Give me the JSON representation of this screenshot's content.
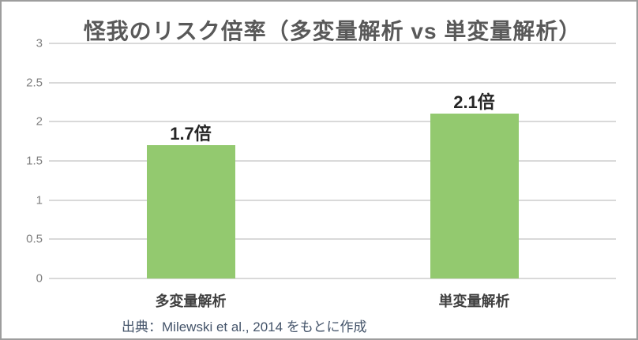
{
  "chart_data": {
    "type": "bar",
    "title": "怪我のリスク倍率（多変量解析 vs 単変量解析）",
    "categories": [
      "多変量解析",
      "単変量解析"
    ],
    "values": [
      1.7,
      2.1
    ],
    "bar_labels": [
      "1.7倍",
      "2.1倍"
    ],
    "y_ticks": [
      0,
      0.5,
      1,
      1.5,
      2,
      2.5,
      3
    ],
    "ylim": [
      0,
      3
    ],
    "grid": true,
    "legend": false,
    "bar_color": "#93C96F",
    "source_note": "出典：Milewski et al., 2014 をもとに作成"
  },
  "colors": {
    "title_text": "#595959",
    "tick_text": "#7F7F7F",
    "value_label_text": "#262626",
    "category_text": "#404040",
    "source_text": "#44546A",
    "gridline": "#D9D9D9",
    "frame_border": "#9D9D9D",
    "background": "#FFFFFF"
  }
}
